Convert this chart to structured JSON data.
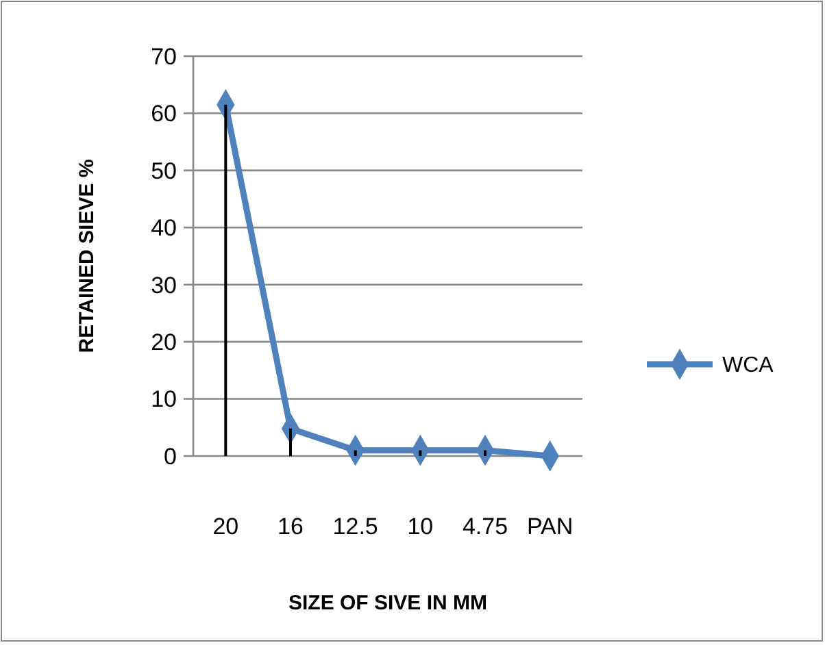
{
  "chart_data": {
    "type": "line",
    "xlabel": "SIZE OF SIVE IN MM",
    "ylabel": "RETAINED SIEVE %",
    "categories": [
      "20",
      "16",
      "12.5",
      "10",
      "4.75",
      "PAN"
    ],
    "series": [
      {
        "type": "bar",
        "color": "#000000",
        "values": [
          61.5,
          4.8,
          1,
          1,
          1,
          0
        ]
      },
      {
        "name": "WCA",
        "color": "#4f81bd",
        "values": [
          61.5,
          4.8,
          1,
          1,
          1,
          0
        ]
      }
    ],
    "ylim": [
      0,
      70
    ],
    "yticks": [
      0,
      10,
      20,
      30,
      40,
      50,
      60,
      70
    ],
    "grid": "y",
    "legend": "right",
    "marker": "diamond"
  }
}
